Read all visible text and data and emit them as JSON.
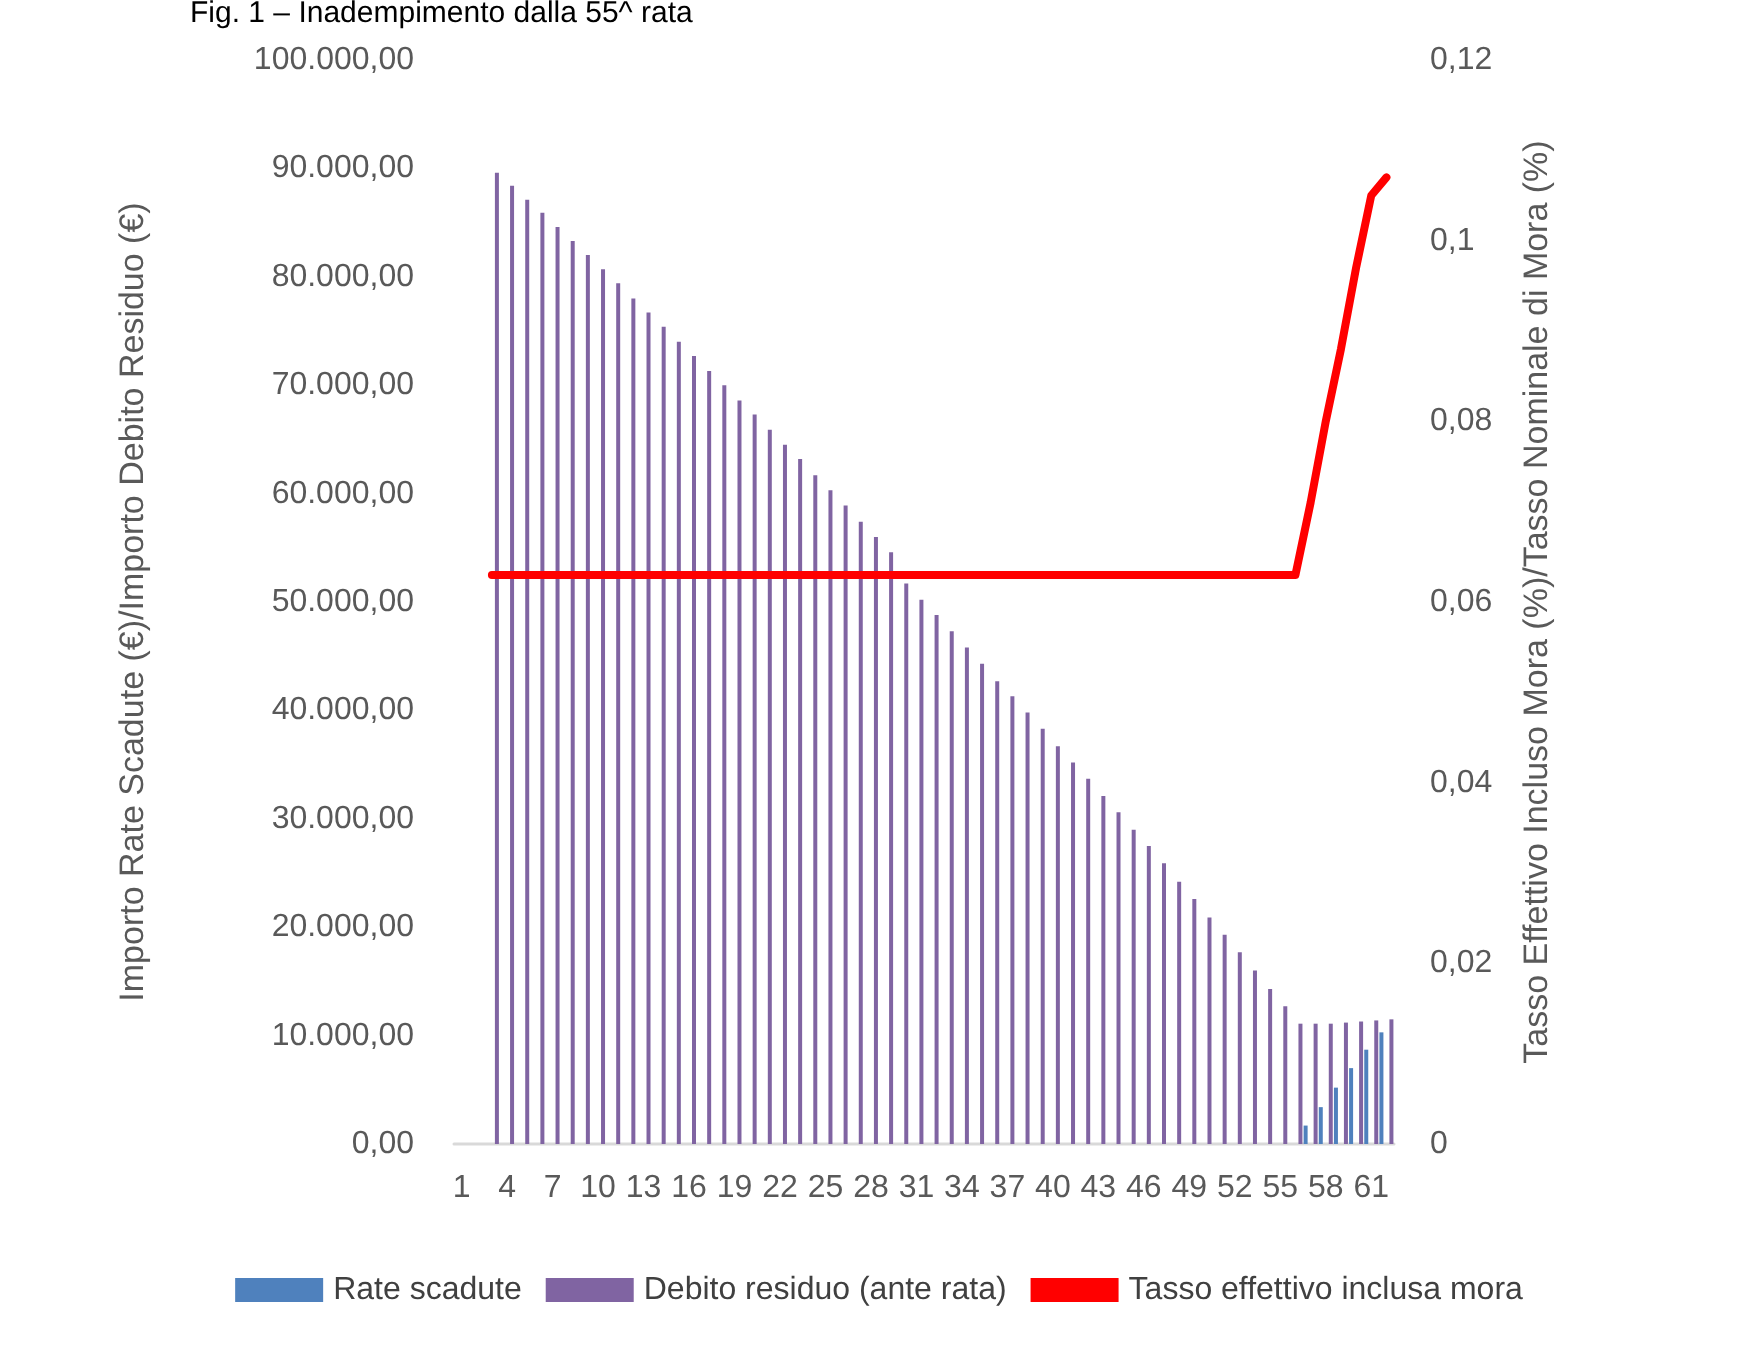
{
  "chart_data": {
    "type": "bar",
    "title": "Fig. 1 – Inadempimento dalla 55^ rata",
    "ylabel": "Importo Rate Scadute (€)/Importo Debito Residuo (€)",
    "y2label": "Tasso Effettivo Incluso Mora (%)/Tasso Nominale di Mora (%)",
    "categories": [
      "1",
      null,
      null,
      "4",
      null,
      null,
      "7",
      null,
      null,
      "10",
      null,
      null,
      "13",
      null,
      null,
      "16",
      null,
      null,
      "19",
      null,
      null,
      "22",
      null,
      null,
      "25",
      null,
      null,
      "28",
      null,
      null,
      "31",
      null,
      null,
      "34",
      null,
      null,
      "37",
      null,
      null,
      "40",
      null,
      null,
      "43",
      null,
      null,
      "46",
      null,
      null,
      "49",
      null,
      null,
      "52",
      null,
      null,
      "55",
      null,
      null,
      "58",
      null,
      null,
      "61",
      null
    ],
    "series": [
      {
        "name": "Rate scadute",
        "color": "#4f81bd",
        "values": [
          null,
          null,
          null,
          null,
          null,
          null,
          null,
          null,
          null,
          null,
          null,
          null,
          null,
          null,
          null,
          null,
          null,
          null,
          null,
          null,
          null,
          null,
          null,
          null,
          null,
          null,
          null,
          null,
          null,
          null,
          null,
          null,
          null,
          null,
          null,
          null,
          null,
          null,
          null,
          null,
          null,
          null,
          null,
          null,
          null,
          null,
          null,
          null,
          null,
          null,
          null,
          null,
          null,
          null,
          null,
          null,
          1700,
          3400,
          5200,
          7000,
          8700,
          10300
        ]
      },
      {
        "name": "Debito residuo (ante rata)",
        "color": "#8064a2",
        "values": [
          null,
          null,
          89600,
          88400,
          87100,
          85900,
          84600,
          83300,
          82000,
          80700,
          79400,
          78000,
          76700,
          75400,
          74000,
          72700,
          71300,
          70000,
          68600,
          67300,
          65900,
          64500,
          63200,
          61700,
          60300,
          58900,
          57400,
          56000,
          54600,
          51700,
          50200,
          48800,
          47300,
          45800,
          44300,
          42700,
          41300,
          39800,
          38300,
          36700,
          35200,
          33700,
          32100,
          30600,
          29000,
          27500,
          25900,
          24200,
          22600,
          20900,
          19300,
          17700,
          16000,
          14300,
          12700,
          11100,
          11100,
          11100,
          11200,
          11300,
          11400,
          11500
        ]
      },
      {
        "name": "Tasso effettivo inclusa mora",
        "type": "line",
        "axis": "y2",
        "color": "#ff0000",
        "marker": "none",
        "values": [
          null,
          null,
          0.063,
          0.063,
          0.063,
          0.063,
          0.063,
          0.063,
          0.063,
          0.063,
          0.063,
          0.063,
          0.063,
          0.063,
          0.063,
          0.063,
          0.063,
          0.063,
          0.063,
          0.063,
          0.063,
          0.063,
          0.063,
          0.063,
          0.063,
          0.063,
          0.063,
          0.063,
          0.063,
          0.063,
          0.063,
          0.063,
          0.063,
          0.063,
          0.063,
          0.063,
          0.063,
          0.063,
          0.063,
          0.063,
          0.063,
          0.063,
          0.063,
          0.063,
          0.063,
          0.063,
          0.063,
          0.063,
          0.063,
          0.063,
          0.063,
          0.063,
          0.063,
          0.063,
          0.063,
          0.063,
          0.071,
          0.08,
          0.088,
          0.097,
          0.105,
          0.107
        ]
      }
    ],
    "ylim": [
      0,
      100000
    ],
    "yticks": [
      {
        "value": 0,
        "label": "0,00"
      },
      {
        "value": 10000,
        "label": "10.000,00"
      },
      {
        "value": 20000,
        "label": "20.000,00"
      },
      {
        "value": 30000,
        "label": "30.000,00"
      },
      {
        "value": 40000,
        "label": "40.000,00"
      },
      {
        "value": 50000,
        "label": "50.000,00"
      },
      {
        "value": 60000,
        "label": "60.000,00"
      },
      {
        "value": 70000,
        "label": "70.000,00"
      },
      {
        "value": 80000,
        "label": "80.000,00"
      },
      {
        "value": 90000,
        "label": "90.000,00"
      },
      {
        "value": 100000,
        "label": "100.000,00"
      }
    ],
    "y2lim": [
      0,
      0.12
    ],
    "y2ticks": [
      0,
      {
        "value": 0.02,
        "label": "0,02"
      },
      {
        "value": 0.04,
        "label": "0,04"
      },
      {
        "value": 0.06,
        "label": "0,06"
      },
      {
        "value": 0.08,
        "label": "0,08"
      },
      {
        "value": 0.1,
        "label": "0,1"
      },
      {
        "value": 0.12,
        "label": "0,12"
      }
    ],
    "grid": false,
    "legend": "bottom"
  }
}
